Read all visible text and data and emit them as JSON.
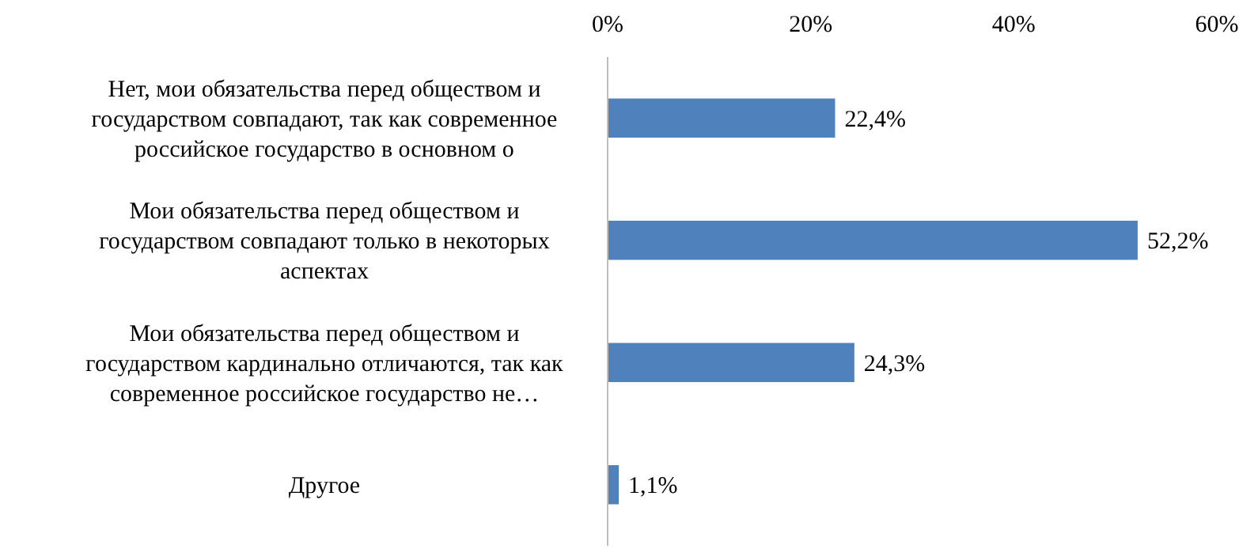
{
  "chart_data": {
    "type": "bar",
    "orientation": "horizontal",
    "categories": [
      "Нет, мои обязательства перед обществом и\nгосударством совпадают, так как современное\nроссийское государство в основном о",
      "Мои обязательства перед обществом и\nгосударством совпадают только в некоторых\nаспектах",
      "Мои обязательства перед обществом и\nгосударством кардинально отличаются, так как\nсовременное российское государство не…",
      "Другое"
    ],
    "values": [
      22.4,
      52.2,
      24.3,
      1.1
    ],
    "value_labels": [
      "22,4%",
      "52,2%",
      "24,3%",
      "1,1%"
    ],
    "color": "#4f81bd",
    "xlim": [
      0,
      60
    ],
    "xticks": [
      {
        "value": 0,
        "label": "0%"
      },
      {
        "value": 20,
        "label": "20%"
      },
      {
        "value": 40,
        "label": "40%"
      },
      {
        "value": 60,
        "label": "60%"
      }
    ],
    "grid": false
  }
}
